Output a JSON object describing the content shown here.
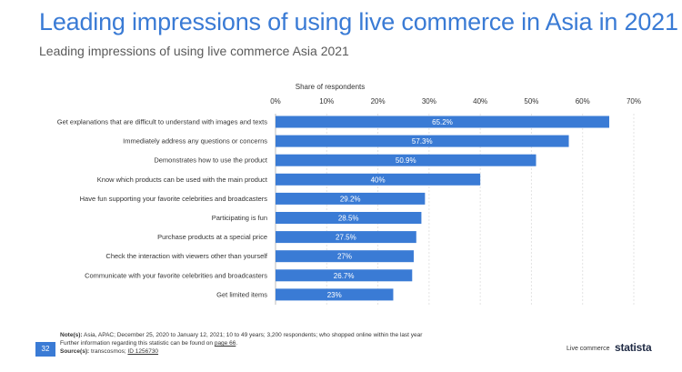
{
  "header": {
    "title": "Leading impressions of using live commerce in Asia in 2021",
    "subtitle": "Leading impressions of using live commerce Asia 2021"
  },
  "footer": {
    "notes_label": "Note(s):",
    "notes_text": "Asia, APAC; December 25, 2020 to January 12, 2021; 10 to 49 years; 3,200 respondents; who shopped online within the last year",
    "further_text": "Further information regarding this statistic can be found on",
    "further_link": "page 66",
    "source_label": "Source(s):",
    "source_text": "transcosmos;",
    "source_id": "ID 1256730",
    "page_number": "32",
    "topic": "Live commerce",
    "brand": "statista"
  },
  "colors": {
    "bar": "#3a7bd5",
    "title": "#3a7bd5"
  },
  "chart_data": {
    "type": "bar",
    "orientation": "horizontal",
    "xlabel": "Share of respondents",
    "xlim": [
      0,
      70
    ],
    "ticks": [
      "0%",
      "10%",
      "20%",
      "30%",
      "40%",
      "50%",
      "60%",
      "70%"
    ],
    "grid": true,
    "categories": [
      "Get explanations that are difficult to understand with images and texts",
      "Immediately address any questions or concerns",
      "Demonstrates how to use the product",
      "Know which products can be used with the main product",
      "Have fun supporting your favorite celebrities and broadcasters",
      "Participating is fun",
      "Purchase products at a special price",
      "Check the interaction with viewers other than yourself",
      "Communicate with your favorite celebrities and broadcasters",
      "Get limited items"
    ],
    "values": [
      65.2,
      57.3,
      50.9,
      40,
      29.2,
      28.5,
      27.5,
      27,
      26.7,
      23
    ],
    "value_labels": [
      "65.2%",
      "57.3%",
      "50.9%",
      "40%",
      "29.2%",
      "28.5%",
      "27.5%",
      "27%",
      "26.7%",
      "23%"
    ]
  }
}
